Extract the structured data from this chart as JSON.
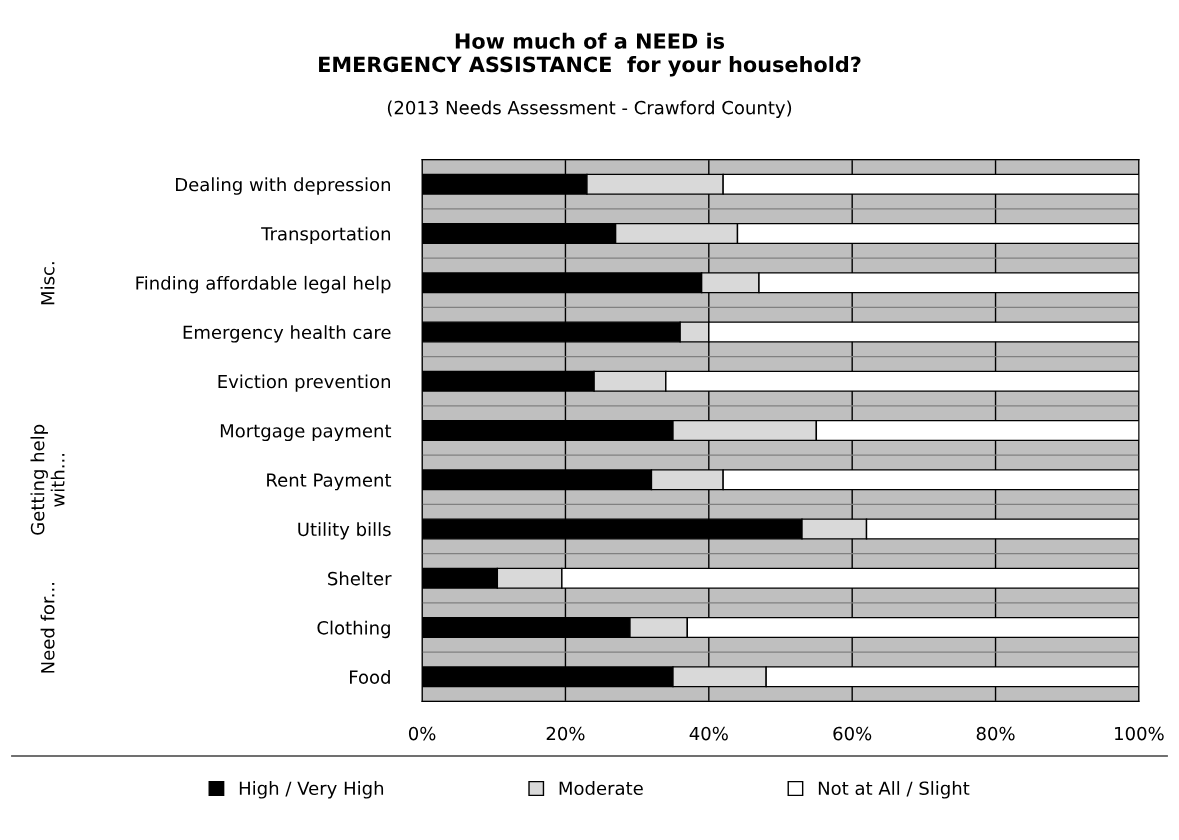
{
  "chart_data": {
    "type": "bar",
    "orientation": "horizontal",
    "stacked": true,
    "title": "How much of a NEED is\nEMERGENCY ASSISTANCE  for your household?",
    "subtitle": "(2013 Needs Assessment - Crawford County)",
    "categories": [
      "Dealing with depression",
      "Transportation",
      "Finding affordable legal help",
      "Emergency health care",
      "Eviction prevention",
      "Mortgage payment",
      "Rent Payment",
      "Utility bills",
      "Shelter",
      "Clothing",
      "Food"
    ],
    "series": [
      {
        "name": "High / Very High",
        "color": "#000000",
        "values": [
          23,
          27,
          39,
          36,
          24,
          35,
          32,
          53,
          10.5,
          29,
          35
        ]
      },
      {
        "name": "Moderate",
        "color": "#d9d9d9",
        "values": [
          19,
          17,
          8,
          4,
          10,
          20,
          10,
          9,
          9,
          8,
          13
        ]
      },
      {
        "name": "Not at All / Slight",
        "color": "#ffffff",
        "values": [
          58,
          56,
          53,
          60,
          66,
          45,
          58,
          38,
          80.5,
          63,
          52
        ]
      }
    ],
    "xlim": [
      0,
      100
    ],
    "xticks": [
      {
        "value": 0,
        "label": "0%"
      },
      {
        "value": 20,
        "label": "20%"
      },
      {
        "value": 40,
        "label": "40%"
      },
      {
        "value": 60,
        "label": "60%"
      },
      {
        "value": 80,
        "label": "80%"
      },
      {
        "value": 100,
        "label": "100%"
      }
    ],
    "grid": "x",
    "legend": "bottom",
    "annotations": [
      "Misc.",
      "Getting help\nwith...",
      "Need for..."
    ]
  }
}
